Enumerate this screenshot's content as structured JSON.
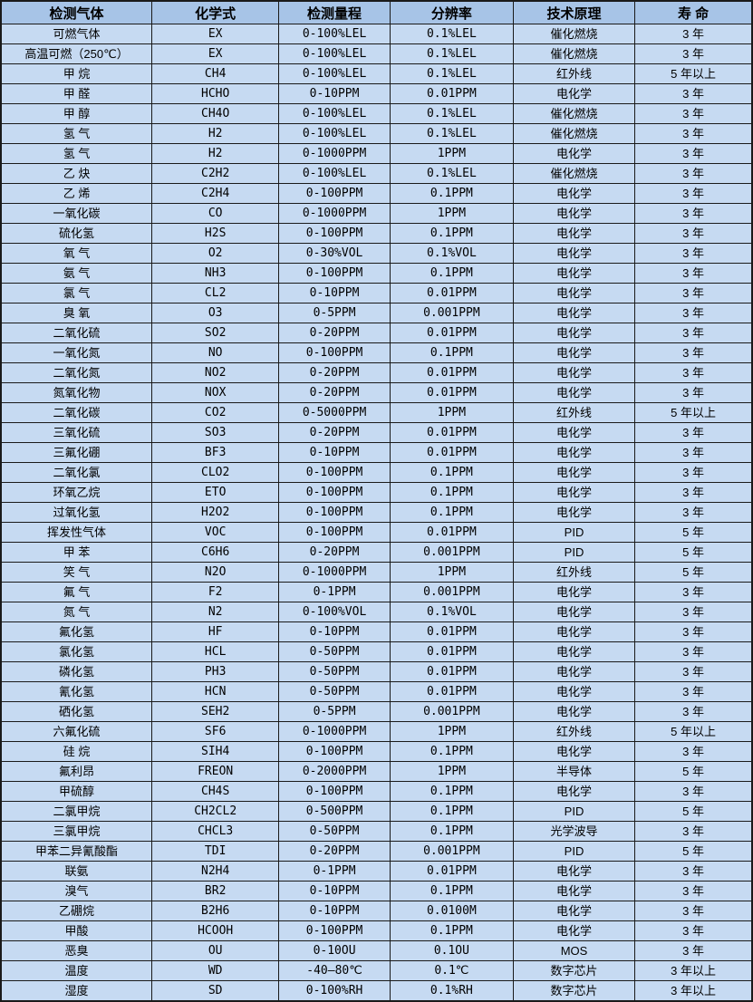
{
  "table": {
    "columns": [
      "检测气体",
      "化学式",
      "检测量程",
      "分辨率",
      "技术原理",
      "寿 命"
    ],
    "column_keys": [
      "gas",
      "formula",
      "range",
      "resolution",
      "principle",
      "lifespan"
    ],
    "rows": [
      [
        "可燃气体",
        "EX",
        "0-100%LEL",
        "0.1%LEL",
        "催化燃烧",
        "3 年"
      ],
      [
        "高温可燃（250℃）",
        "EX",
        "0-100%LEL",
        "0.1%LEL",
        "催化燃烧",
        "3 年"
      ],
      [
        "甲 烷",
        "CH4",
        "0-100%LEL",
        "0.1%LEL",
        "红外线",
        "5 年以上"
      ],
      [
        "甲 醛",
        "HCHO",
        "0-10PPM",
        "0.01PPM",
        "电化学",
        "3 年"
      ],
      [
        "甲 醇",
        "CH4O",
        "0-100%LEL",
        "0.1%LEL",
        "催化燃烧",
        "3 年"
      ],
      [
        "氢 气",
        "H2",
        "0-100%LEL",
        "0.1%LEL",
        "催化燃烧",
        "3 年"
      ],
      [
        "氢 气",
        "H2",
        "0-1000PPM",
        "1PPM",
        "电化学",
        "3 年"
      ],
      [
        "乙 炔",
        "C2H2",
        "0-100%LEL",
        "0.1%LEL",
        "催化燃烧",
        "3 年"
      ],
      [
        "乙 烯",
        "C2H4",
        "0-100PPM",
        "0.1PPM",
        "电化学",
        "3 年"
      ],
      [
        "一氧化碳",
        "CO",
        "0-1000PPM",
        "1PPM",
        "电化学",
        "3 年"
      ],
      [
        "硫化氢",
        "H2S",
        "0-100PPM",
        "0.1PPM",
        "电化学",
        "3 年"
      ],
      [
        "氧 气",
        "O2",
        "0-30%VOL",
        "0.1%VOL",
        "电化学",
        "3 年"
      ],
      [
        "氨 气",
        "NH3",
        "0-100PPM",
        "0.1PPM",
        "电化学",
        "3 年"
      ],
      [
        "氯 气",
        "CL2",
        "0-10PPM",
        "0.01PPM",
        "电化学",
        "3 年"
      ],
      [
        "臭 氧",
        "O3",
        "0-5PPM",
        "0.001PPM",
        "电化学",
        "3 年"
      ],
      [
        "二氧化硫",
        "SO2",
        "0-20PPM",
        "0.01PPM",
        "电化学",
        "3 年"
      ],
      [
        "一氧化氮",
        "NO",
        "0-100PPM",
        "0.1PPM",
        "电化学",
        "3 年"
      ],
      [
        "二氧化氮",
        "NO2",
        "0-20PPM",
        "0.01PPM",
        "电化学",
        "3 年"
      ],
      [
        "氮氧化物",
        "NOX",
        "0-20PPM",
        "0.01PPM",
        "电化学",
        "3 年"
      ],
      [
        "二氧化碳",
        "CO2",
        "0-5000PPM",
        "1PPM",
        "红外线",
        "5 年以上"
      ],
      [
        "三氧化硫",
        "SO3",
        "0-20PPM",
        "0.01PPM",
        "电化学",
        "3 年"
      ],
      [
        "三氟化硼",
        "BF3",
        "0-10PPM",
        "0.01PPM",
        "电化学",
        "3 年"
      ],
      [
        "二氧化氯",
        "CLO2",
        "0-100PPM",
        "0.1PPM",
        "电化学",
        "3 年"
      ],
      [
        "环氧乙烷",
        "ETO",
        "0-100PPM",
        "0.1PPM",
        "电化学",
        "3 年"
      ],
      [
        "过氧化氢",
        "H2O2",
        "0-100PPM",
        "0.1PPM",
        "电化学",
        "3 年"
      ],
      [
        "挥发性气体",
        "VOC",
        "0-100PPM",
        "0.01PPM",
        "PID",
        "5 年"
      ],
      [
        "甲 苯",
        "C6H6",
        "0-20PPM",
        "0.001PPM",
        "PID",
        "5 年"
      ],
      [
        "笑 气",
        "N2O",
        "0-1000PPM",
        "1PPM",
        "红外线",
        "5 年"
      ],
      [
        "氟 气",
        "F2",
        "0-1PPM",
        "0.001PPM",
        "电化学",
        "3 年"
      ],
      [
        "氮 气",
        "N2",
        "0-100%VOL",
        "0.1%VOL",
        "电化学",
        "3 年"
      ],
      [
        "氟化氢",
        "HF",
        "0-10PPM",
        "0.01PPM",
        "电化学",
        "3 年"
      ],
      [
        "氯化氢",
        "HCL",
        "0-50PPM",
        "0.01PPM",
        "电化学",
        "3 年"
      ],
      [
        "磷化氢",
        "PH3",
        "0-50PPM",
        "0.01PPM",
        "电化学",
        "3 年"
      ],
      [
        "氰化氢",
        "HCN",
        "0-50PPM",
        "0.01PPM",
        "电化学",
        "3 年"
      ],
      [
        "硒化氢",
        "SEH2",
        "0-5PPM",
        "0.001PPM",
        "电化学",
        "3 年"
      ],
      [
        "六氟化硫",
        "SF6",
        "0-1000PPM",
        "1PPM",
        "红外线",
        "5 年以上"
      ],
      [
        "硅 烷",
        "SIH4",
        "0-100PPM",
        "0.1PPM",
        "电化学",
        "3 年"
      ],
      [
        "氟利昂",
        "FREON",
        "0-2000PPM",
        "1PPM",
        "半导体",
        "5 年"
      ],
      [
        "甲硫醇",
        "CH4S",
        "0-100PPM",
        "0.1PPM",
        "电化学",
        "3 年"
      ],
      [
        "二氯甲烷",
        "CH2CL2",
        "0-500PPM",
        "0.1PPM",
        "PID",
        "5 年"
      ],
      [
        "三氯甲烷",
        "CHCL3",
        "0-50PPM",
        "0.1PPM",
        "光学波导",
        "3 年"
      ],
      [
        "甲苯二异氰酸酯",
        "TDI",
        "0-20PPM",
        "0.001PPM",
        "PID",
        "5 年"
      ],
      [
        "联氨",
        "N2H4",
        "0-1PPM",
        "0.01PPM",
        "电化学",
        "3 年"
      ],
      [
        "溴气",
        "BR2",
        "0-10PPM",
        "0.1PPM",
        "电化学",
        "3 年"
      ],
      [
        "乙硼烷",
        "B2H6",
        "0-10PPM",
        "0.0100M",
        "电化学",
        "3 年"
      ],
      [
        "甲酸",
        "HCOOH",
        "0-100PPM",
        "0.1PPM",
        "电化学",
        "3 年"
      ],
      [
        "恶臭",
        "OU",
        "0-10OU",
        "0.1OU",
        "MOS",
        "3 年"
      ],
      [
        "温度",
        "WD",
        "-40—80℃",
        "0.1℃",
        "数字芯片",
        "3 年以上"
      ],
      [
        "湿度",
        "SD",
        "0-100%RH",
        "0.1%RH",
        "数字芯片",
        "3 年以上"
      ]
    ]
  },
  "colors": {
    "header_bg": "#a7c4e7",
    "row_bg": "#c6daf2",
    "border": "#1a1a1a",
    "text": "#000000"
  }
}
